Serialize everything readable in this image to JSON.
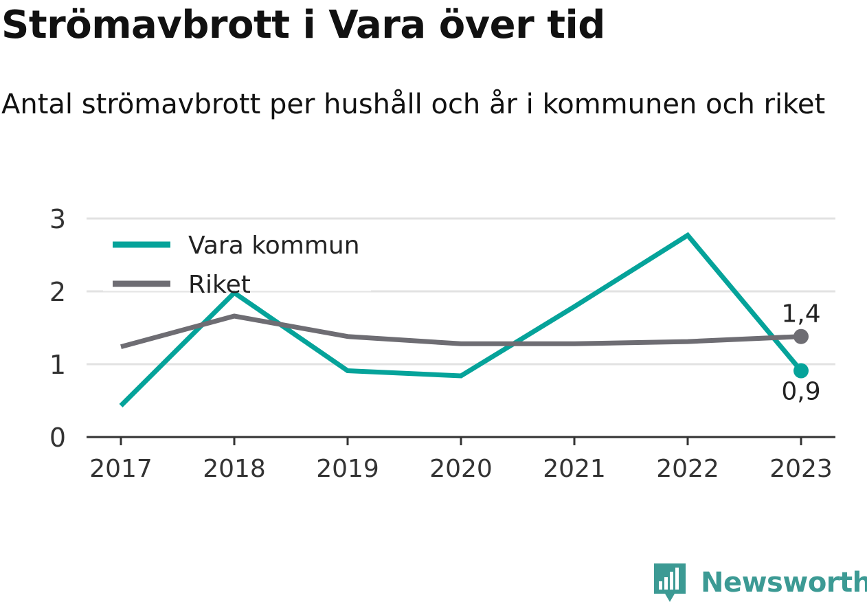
{
  "title": "Strömavbrott i Vara över tid",
  "subtitle": "Antal strömavbrott per hushåll och år i kommunen och riket",
  "brand": {
    "name": "Newsworthy",
    "logo_icon": "bar-chart-speech-bubble-icon",
    "color": "#3c9a94"
  },
  "chart_data": {
    "type": "line",
    "x": [
      "2017",
      "2018",
      "2019",
      "2020",
      "2021",
      "2022",
      "2023"
    ],
    "ylim": [
      0,
      3
    ],
    "yticks": [
      "0",
      "1",
      "2",
      "3"
    ],
    "grid": true,
    "legend_position": "top-left",
    "series": [
      {
        "name": "Vara kommun",
        "color": "#05a39a",
        "values": [
          0.43,
          1.98,
          0.91,
          0.84,
          1.79,
          2.77,
          0.91
        ],
        "end_label": "0,9"
      },
      {
        "name": "Riket",
        "color": "#6e6d73",
        "values": [
          1.24,
          1.66,
          1.38,
          1.28,
          1.28,
          1.31,
          1.38
        ],
        "end_label": "1,4"
      }
    ]
  }
}
